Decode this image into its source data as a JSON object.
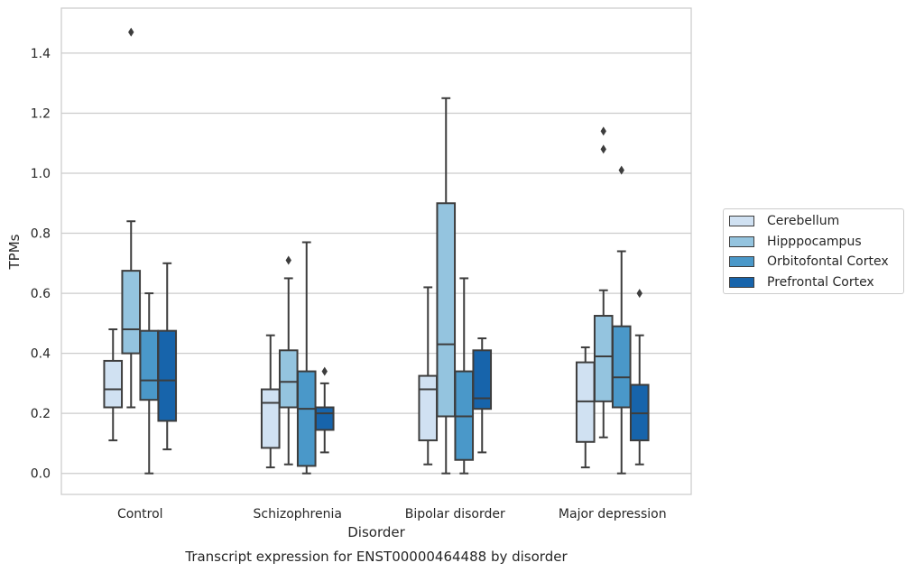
{
  "chart_data": {
    "type": "boxplot",
    "title": "Transcript expression for ENST00000464488 by disorder",
    "xlabel": "Disorder",
    "ylabel": "TPMs",
    "ylim": [
      -0.07,
      1.55
    ],
    "yticks": [
      "0.0",
      "0.2",
      "0.4",
      "0.6",
      "0.8",
      "1.0",
      "1.2",
      "1.4"
    ],
    "grid": true,
    "legend_position": "right",
    "categories": [
      "Control",
      "Schizophrenia",
      "Bipolar disorder",
      "Major depression"
    ],
    "series": [
      {
        "name": "Cerebellum",
        "color": "#d0e1f2",
        "boxes": [
          {
            "whislo": 0.11,
            "q1": 0.22,
            "med": 0.28,
            "q3": 0.375,
            "whishi": 0.48,
            "fliers": []
          },
          {
            "whislo": 0.02,
            "q1": 0.085,
            "med": 0.235,
            "q3": 0.28,
            "whishi": 0.46,
            "fliers": []
          },
          {
            "whislo": 0.03,
            "q1": 0.11,
            "med": 0.28,
            "q3": 0.325,
            "whishi": 0.62,
            "fliers": []
          },
          {
            "whislo": 0.02,
            "q1": 0.105,
            "med": 0.24,
            "q3": 0.37,
            "whishi": 0.42,
            "fliers": []
          }
        ]
      },
      {
        "name": "Hipppocampus",
        "color": "#94c4df",
        "boxes": [
          {
            "whislo": 0.22,
            "q1": 0.4,
            "med": 0.48,
            "q3": 0.675,
            "whishi": 0.84,
            "fliers": [
              1.47
            ]
          },
          {
            "whislo": 0.03,
            "q1": 0.22,
            "med": 0.305,
            "q3": 0.41,
            "whishi": 0.65,
            "fliers": [
              0.71
            ]
          },
          {
            "whislo": 0.0,
            "q1": 0.19,
            "med": 0.43,
            "q3": 0.9,
            "whishi": 1.25,
            "fliers": []
          },
          {
            "whislo": 0.12,
            "q1": 0.24,
            "med": 0.39,
            "q3": 0.525,
            "whishi": 0.61,
            "fliers": [
              1.08,
              1.14
            ]
          }
        ]
      },
      {
        "name": "Orbitofontal Cortex",
        "color": "#4a98c9",
        "boxes": [
          {
            "whislo": 0.0,
            "q1": 0.245,
            "med": 0.31,
            "q3": 0.475,
            "whishi": 0.6,
            "fliers": []
          },
          {
            "whislo": 0.0,
            "q1": 0.025,
            "med": 0.215,
            "q3": 0.34,
            "whishi": 0.77,
            "fliers": []
          },
          {
            "whislo": 0.0,
            "q1": 0.045,
            "med": 0.19,
            "q3": 0.34,
            "whishi": 0.65,
            "fliers": []
          },
          {
            "whislo": 0.0,
            "q1": 0.22,
            "med": 0.32,
            "q3": 0.49,
            "whishi": 0.74,
            "fliers": [
              1.01
            ]
          }
        ]
      },
      {
        "name": "Prefrontal Cortex",
        "color": "#1764ab",
        "boxes": [
          {
            "whislo": 0.08,
            "q1": 0.175,
            "med": 0.31,
            "q3": 0.475,
            "whishi": 0.7,
            "fliers": []
          },
          {
            "whislo": 0.07,
            "q1": 0.145,
            "med": 0.2,
            "q3": 0.22,
            "whishi": 0.3,
            "fliers": [
              0.34
            ]
          },
          {
            "whislo": 0.07,
            "q1": 0.215,
            "med": 0.25,
            "q3": 0.41,
            "whishi": 0.45,
            "fliers": []
          },
          {
            "whislo": 0.03,
            "q1": 0.11,
            "med": 0.2,
            "q3": 0.295,
            "whishi": 0.46,
            "fliers": [
              0.6
            ]
          }
        ]
      }
    ]
  }
}
